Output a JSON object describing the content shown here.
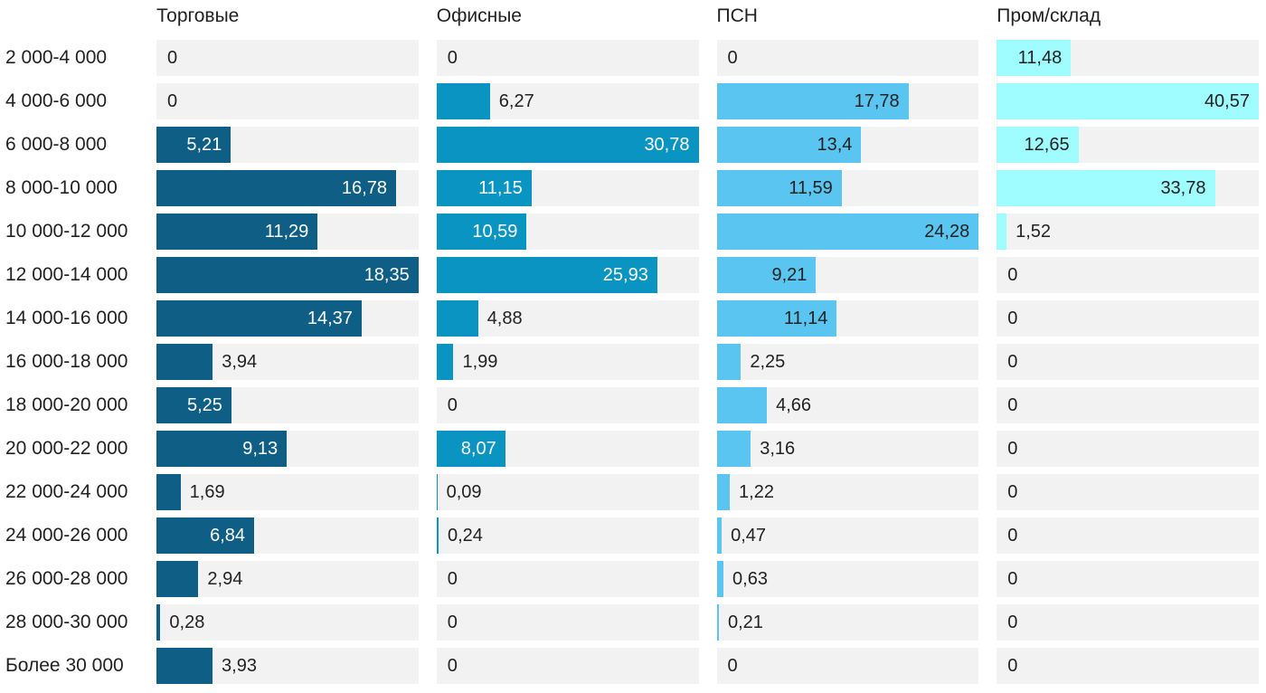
{
  "chart_data": {
    "type": "bar",
    "orientation": "horizontal",
    "title": "",
    "normalization": "per_series_max",
    "grid": false,
    "legend_position": "column_headers",
    "value_decimal_separator": ",",
    "track_color": "#f2f2f2",
    "text_color": "#222222",
    "categories": [
      "2 000-4 000",
      "4 000-6 000",
      "6 000-8 000",
      "8 000-10 000",
      "10 000-12 000",
      "12 000-14 000",
      "14 000-16 000",
      "16 000-18 000",
      "18 000-20 000",
      "20 000-22 000",
      "22 000-24 000",
      "24 000-26 000",
      "26 000-28 000",
      "28 000-30 000",
      "Более 30 000"
    ],
    "series": [
      {
        "name": "Торговые",
        "color": "#0e5e86",
        "inside_label_color": "#ffffff",
        "values": [
          0,
          0,
          5.21,
          16.78,
          11.29,
          18.35,
          14.37,
          3.94,
          5.25,
          9.13,
          1.69,
          6.84,
          2.94,
          0.28,
          3.93
        ]
      },
      {
        "name": "Офисные",
        "color": "#0994c2",
        "inside_label_color": "#ffffff",
        "values": [
          0,
          6.27,
          30.78,
          11.15,
          10.59,
          25.93,
          4.88,
          1.99,
          0,
          8.07,
          0.09,
          0.24,
          0,
          0,
          0
        ]
      },
      {
        "name": "ПСН",
        "color": "#5bc5f1",
        "inside_label_color": "#222222",
        "values": [
          0,
          17.78,
          13.4,
          11.59,
          24.28,
          9.21,
          11.14,
          2.25,
          4.66,
          3.16,
          1.22,
          0.47,
          0.63,
          0.21,
          0
        ]
      },
      {
        "name": "Пром/склад",
        "color": "#9ffcff",
        "inside_label_color": "#222222",
        "values": [
          11.48,
          40.57,
          12.65,
          33.78,
          1.52,
          0,
          0,
          0,
          0,
          0,
          0,
          0,
          0,
          0,
          0
        ]
      }
    ]
  }
}
